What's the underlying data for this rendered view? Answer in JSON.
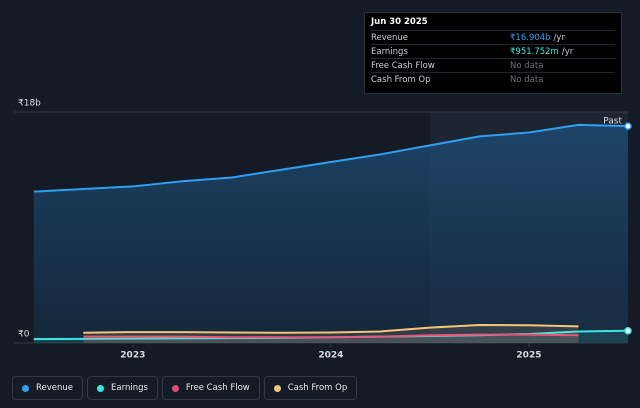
{
  "chart_data": {
    "type": "line",
    "x": [
      2022.5,
      2022.75,
      2023,
      2023.25,
      2023.5,
      2023.75,
      2024,
      2024.25,
      2024.5,
      2024.75,
      2025,
      2025.25,
      2025.5
    ],
    "series": [
      {
        "name": "Revenue",
        "color": "#2f9ff0",
        "values": [
          11.8,
          12.0,
          12.2,
          12.6,
          12.9,
          13.5,
          14.1,
          14.7,
          15.4,
          16.1,
          16.4,
          17.0,
          16.9
        ]
      },
      {
        "name": "Earnings",
        "color": "#3de8e0",
        "values": [
          0.3,
          0.32,
          0.34,
          0.36,
          0.38,
          0.4,
          0.45,
          0.5,
          0.55,
          0.6,
          0.7,
          0.9,
          0.95
        ]
      },
      {
        "name": "Free Cash Flow",
        "color": "#e0487c",
        "values": [
          null,
          0.5,
          0.5,
          0.5,
          0.45,
          0.45,
          0.45,
          0.5,
          0.6,
          0.65,
          0.65,
          0.6,
          null
        ]
      },
      {
        "name": "Cash From Op",
        "color": "#f5c57a",
        "values": [
          null,
          0.8,
          0.85,
          0.85,
          0.82,
          0.8,
          0.82,
          0.9,
          1.2,
          1.4,
          1.38,
          1.3,
          null
        ]
      }
    ],
    "xlim": [
      2022.4,
      2025.5
    ],
    "xticks": [
      2023,
      2024,
      2025
    ],
    "ylim": [
      0,
      18
    ],
    "yticks": [
      {
        "value": 0,
        "label": "₹0"
      },
      {
        "value": 18,
        "label": "₹18b"
      }
    ],
    "highlight_from": 2024.5,
    "annotation": "Past",
    "tooltip": {
      "date": "Jun 30 2025",
      "rows": [
        {
          "label": "Revenue",
          "value": "₹16.904b",
          "unit": "/yr"
        },
        {
          "label": "Earnings",
          "value": "₹951.752m",
          "unit": "/yr"
        },
        {
          "label": "Free Cash Flow",
          "value": "No data"
        },
        {
          "label": "Cash From Op",
          "value": "No data"
        }
      ]
    }
  }
}
